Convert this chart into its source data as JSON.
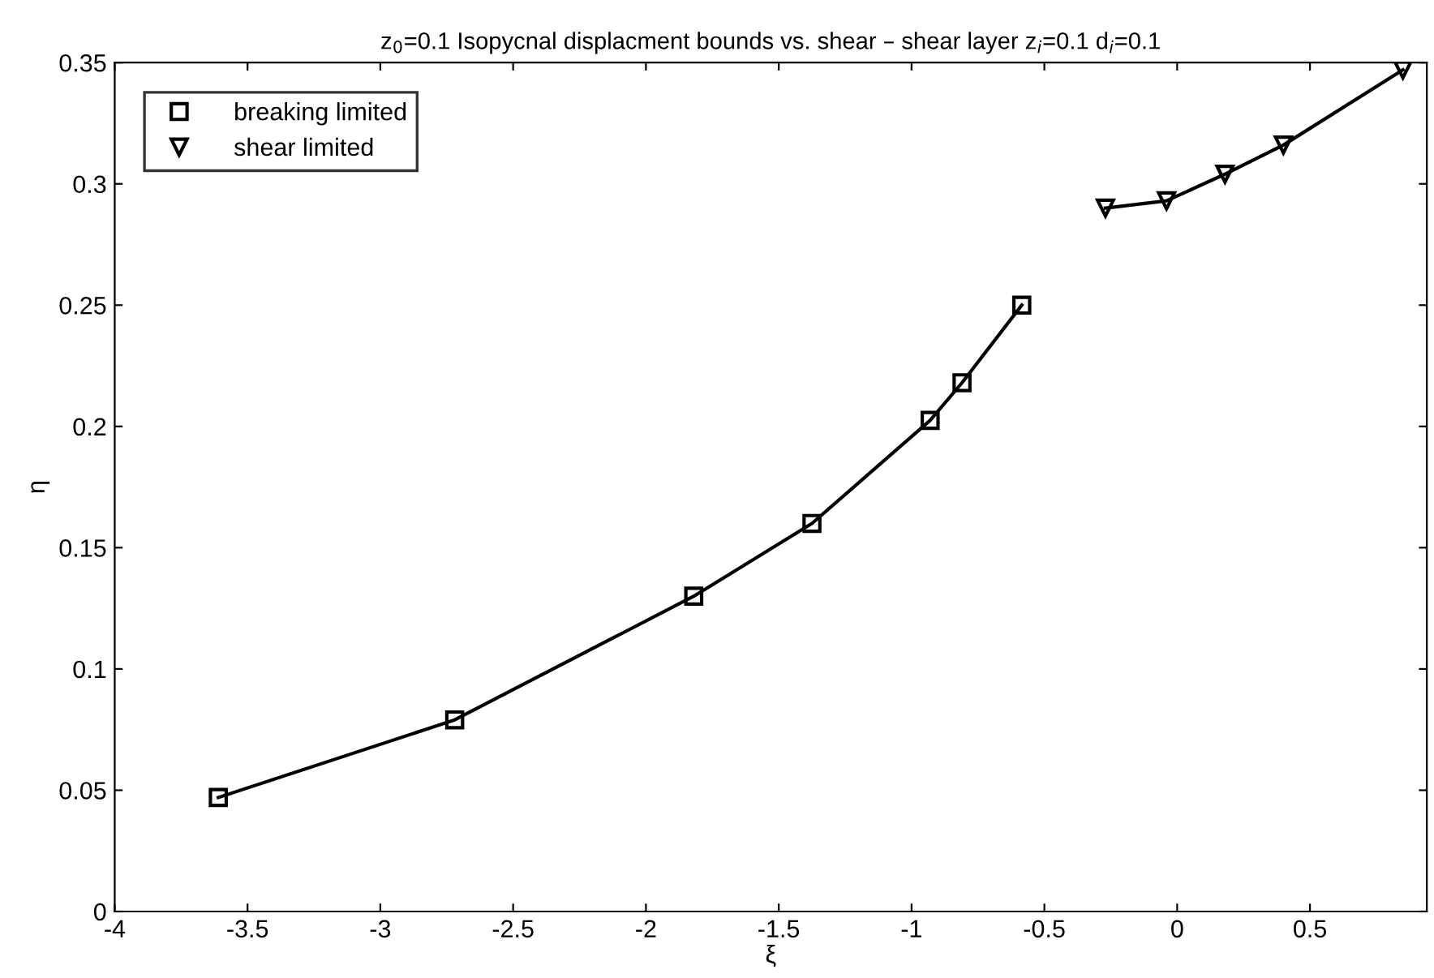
{
  "chart_data": {
    "type": "line",
    "title": "z$_{0}$=0.1 Isopycnal displacment bounds vs. shear – shear layer z$_{i}$=0.1 d$_{i}$=0.1",
    "xlabel": "ξ",
    "ylabel": "η",
    "series": [
      {
        "name": "breaking limited",
        "color": "#000000",
        "marker": "square",
        "x": [
          -3.61,
          -2.72,
          -1.82,
          -1.375,
          -0.93,
          -0.81,
          -0.585
        ],
        "values": [
          0.047,
          0.079,
          0.13,
          0.16,
          0.2025,
          0.218,
          0.25
        ]
      },
      {
        "name": "shear limited",
        "color": "#000000",
        "marker": "triangle",
        "x": [
          -0.27,
          -0.04,
          0.18,
          0.4,
          0.85
        ],
        "values": [
          0.29,
          0.293,
          0.304,
          0.316,
          0.347
        ]
      }
    ],
    "xlim": [
      -4,
      0.94
    ],
    "xticks": [
      -4,
      -3.5,
      -3,
      -2.5,
      -2,
      -1.5,
      -1,
      -0.5,
      0,
      0.5
    ],
    "ylim": [
      0,
      0.35
    ],
    "yticks": [
      0,
      0.05,
      0.1,
      0.15,
      0.2,
      0.25,
      0.3,
      0.35
    ],
    "grid": false,
    "legend": "top left",
    "line_style": "solid"
  }
}
